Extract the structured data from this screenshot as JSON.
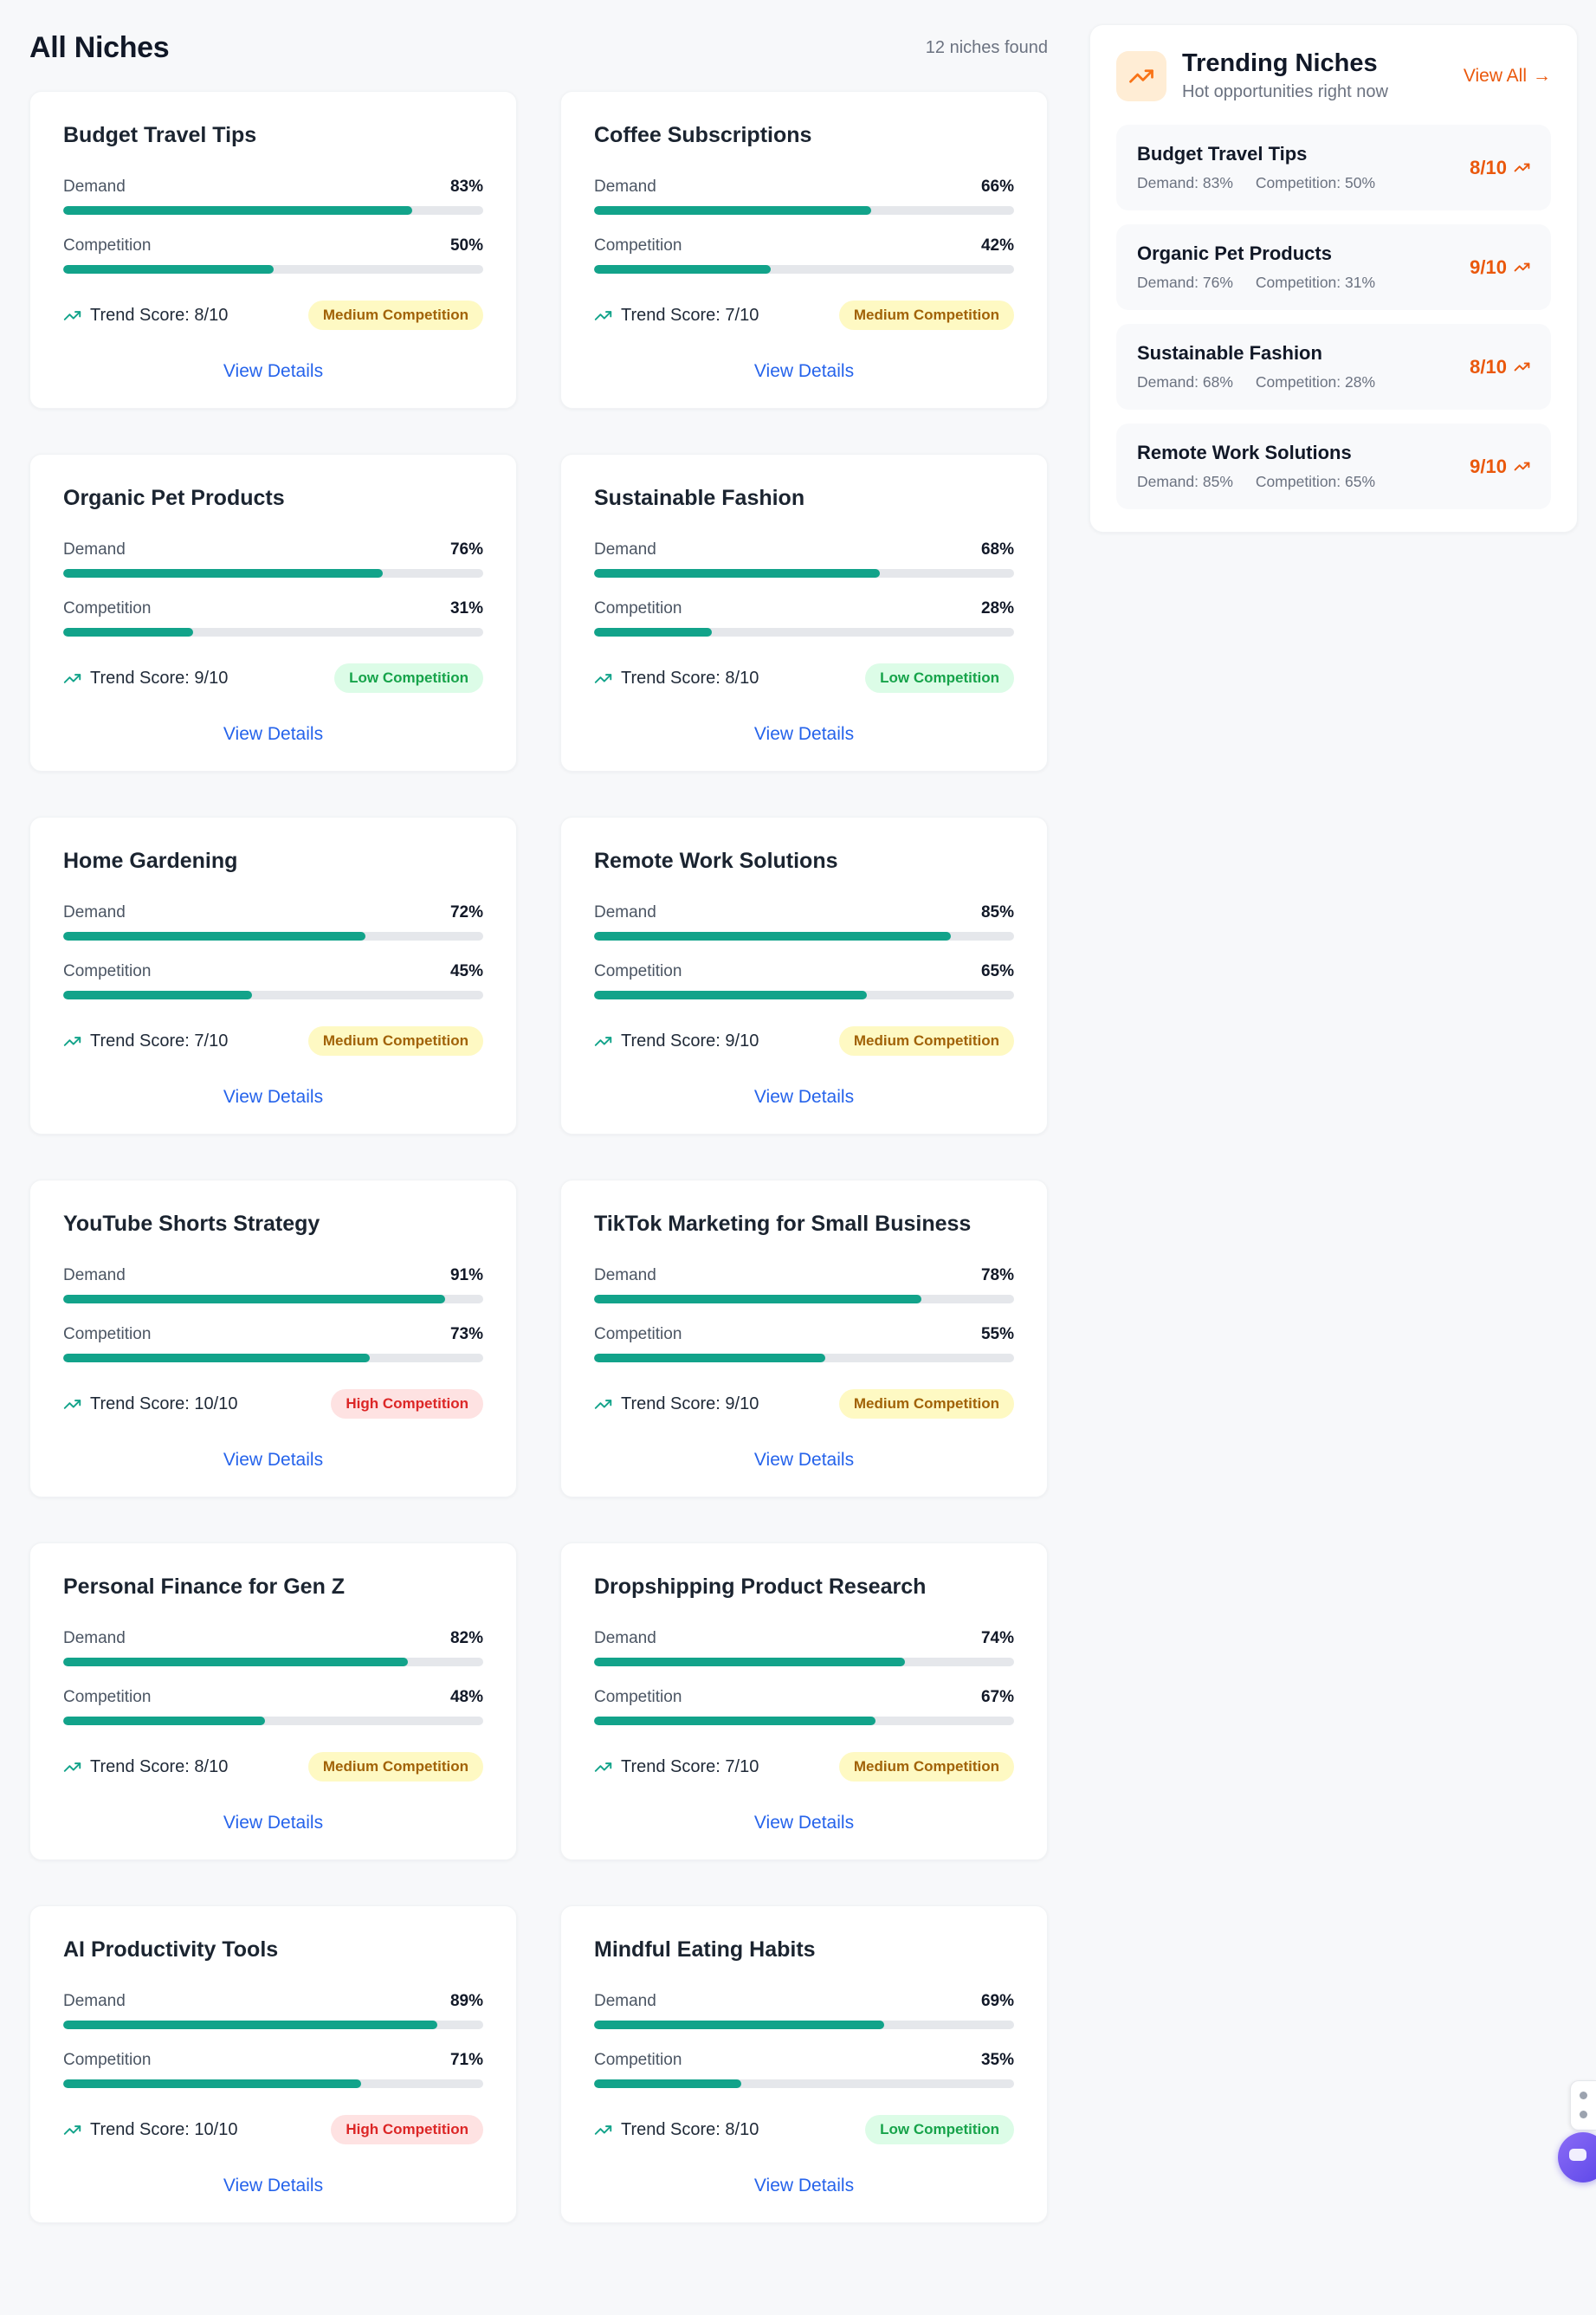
{
  "page": {
    "title": "All Niches",
    "results_count": "12 niches found"
  },
  "labels": {
    "demand": "Demand",
    "competition": "Competition",
    "trend_score_prefix": "Trend Score:",
    "view_details": "View Details"
  },
  "icons": {
    "arrow_right": "→",
    "trending_up": "trending-up"
  },
  "colors": {
    "page-bg": "#f7f8fa",
    "accent-teal": "#12a38a",
    "bar-track": "#e5e7eb",
    "link-blue": "#2563eb",
    "orange": "#f97316",
    "orange-deep": "#ea580c",
    "orange-light": "#ffedd5",
    "badge-medium-bg": "#fef9c3",
    "badge-medium-text": "#a16207",
    "badge-low-bg": "#dcfce7",
    "badge-low-text": "#16a34a",
    "badge-high-bg": "#fee2e2",
    "badge-high-text": "#dc2626",
    "text-primary": "#111827",
    "text-secondary": "#6b7280"
  },
  "niches": [
    {
      "title": "Budget Travel Tips",
      "demand": 83,
      "competition": 50,
      "trend_score": "8/10",
      "badge": "Medium Competition",
      "badge_type": "medium"
    },
    {
      "title": "Coffee Subscriptions",
      "demand": 66,
      "competition": 42,
      "trend_score": "7/10",
      "badge": "Medium Competition",
      "badge_type": "medium"
    },
    {
      "title": "Organic Pet Products",
      "demand": 76,
      "competition": 31,
      "trend_score": "9/10",
      "badge": "Low Competition",
      "badge_type": "low"
    },
    {
      "title": "Sustainable Fashion",
      "demand": 68,
      "competition": 28,
      "trend_score": "8/10",
      "badge": "Low Competition",
      "badge_type": "low"
    },
    {
      "title": "Home Gardening",
      "demand": 72,
      "competition": 45,
      "trend_score": "7/10",
      "badge": "Medium Competition",
      "badge_type": "medium"
    },
    {
      "title": "Remote Work Solutions",
      "demand": 85,
      "competition": 65,
      "trend_score": "9/10",
      "badge": "Medium Competition",
      "badge_type": "medium"
    },
    {
      "title": "YouTube Shorts Strategy",
      "demand": 91,
      "competition": 73,
      "trend_score": "10/10",
      "badge": "High Competition",
      "badge_type": "high"
    },
    {
      "title": "TikTok Marketing for Small Business",
      "demand": 78,
      "competition": 55,
      "trend_score": "9/10",
      "badge": "Medium Competition",
      "badge_type": "medium"
    },
    {
      "title": "Personal Finance for Gen Z",
      "demand": 82,
      "competition": 48,
      "trend_score": "8/10",
      "badge": "Medium Competition",
      "badge_type": "medium"
    },
    {
      "title": "Dropshipping Product Research",
      "demand": 74,
      "competition": 67,
      "trend_score": "7/10",
      "badge": "Medium Competition",
      "badge_type": "medium"
    },
    {
      "title": "AI Productivity Tools",
      "demand": 89,
      "competition": 71,
      "trend_score": "10/10",
      "badge": "High Competition",
      "badge_type": "high"
    },
    {
      "title": "Mindful Eating Habits",
      "demand": 69,
      "competition": 35,
      "trend_score": "8/10",
      "badge": "Low Competition",
      "badge_type": "low"
    }
  ],
  "trending": {
    "title": "Trending Niches",
    "subtitle": "Hot opportunities right now",
    "view_all": "View All",
    "items": [
      {
        "title": "Budget Travel Tips",
        "demand_label": "Demand: 83%",
        "competition_label": "Competition: 50%",
        "score": "8/10"
      },
      {
        "title": "Organic Pet Products",
        "demand_label": "Demand: 76%",
        "competition_label": "Competition: 31%",
        "score": "9/10"
      },
      {
        "title": "Sustainable Fashion",
        "demand_label": "Demand: 68%",
        "competition_label": "Competition: 28%",
        "score": "8/10"
      },
      {
        "title": "Remote Work Solutions",
        "demand_label": "Demand: 85%",
        "competition_label": "Competition: 65%",
        "score": "9/10"
      }
    ]
  }
}
